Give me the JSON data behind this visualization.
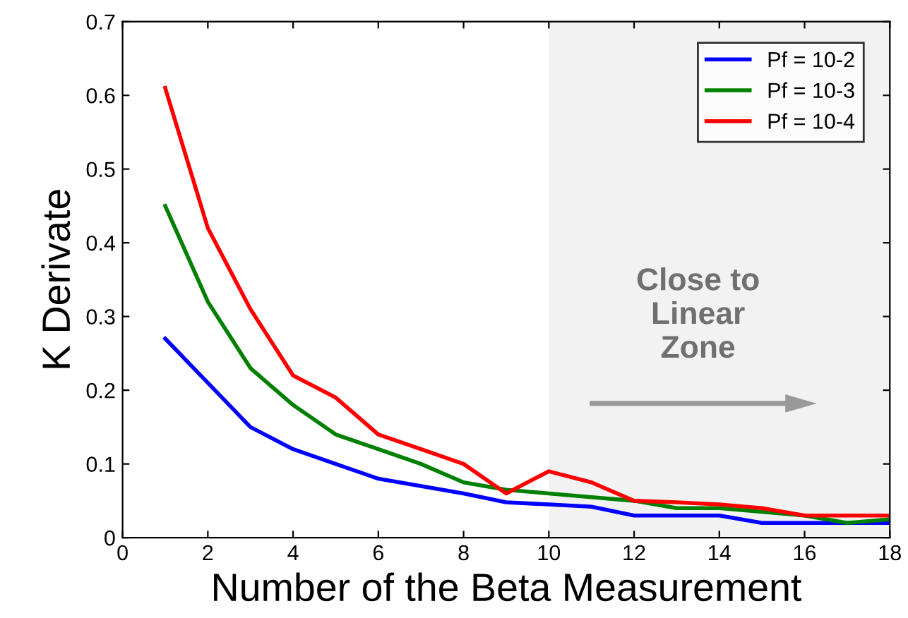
{
  "chart_data": {
    "type": "line",
    "xlabel": "Number of the Beta Measurement",
    "ylabel": "K Derivate",
    "x": [
      1,
      2,
      3,
      4,
      5,
      6,
      7,
      8,
      9,
      10,
      11,
      12,
      13,
      14,
      15,
      16,
      17,
      18
    ],
    "series": [
      {
        "name": "Pf = 10-2",
        "color": "#0000ff",
        "values": [
          0.27,
          0.21,
          0.15,
          0.12,
          0.1,
          0.08,
          0.07,
          0.06,
          0.048,
          0.045,
          0.042,
          0.03,
          0.03,
          0.03,
          0.02,
          0.02,
          0.02,
          0.02
        ]
      },
      {
        "name": "Pf = 10-3",
        "color": "#008000",
        "values": [
          0.45,
          0.32,
          0.23,
          0.18,
          0.14,
          0.12,
          0.1,
          0.075,
          0.065,
          0.06,
          0.055,
          0.05,
          0.04,
          0.04,
          0.035,
          0.03,
          0.02,
          0.025
        ]
      },
      {
        "name": "Pf = 10-4",
        "color": "#ff0000",
        "values": [
          0.61,
          0.42,
          0.31,
          0.22,
          0.19,
          0.14,
          0.12,
          0.1,
          0.06,
          0.09,
          0.075,
          0.05,
          0.048,
          0.045,
          0.04,
          0.03,
          0.03,
          0.03
        ]
      }
    ],
    "bands": [
      {
        "axis": "x",
        "from": 10,
        "to": 18,
        "color": "#f2f2f2"
      }
    ],
    "annotations": [
      "Close to\nLinear\nZone"
    ],
    "xlim": [
      0,
      18
    ],
    "xticks": [
      0,
      2,
      4,
      6,
      8,
      10,
      12,
      14,
      16,
      18
    ],
    "ylim": [
      0,
      0.7
    ],
    "yticks": [
      0,
      0.1,
      0.2,
      0.3,
      0.4,
      0.5,
      0.6,
      0.7
    ],
    "grid": false,
    "legend": "top right",
    "marker": "none",
    "line_style": "solid"
  }
}
